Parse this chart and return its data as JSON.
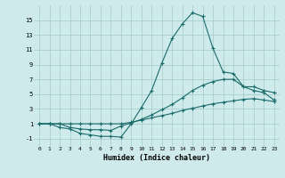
{
  "xlabel": "Humidex (Indice chaleur)",
  "background_color": "#ceeaea",
  "grid_color": "#aacece",
  "line_color": "#1a6b6b",
  "xlim": [
    -0.5,
    23.5
  ],
  "ylim": [
    -2.0,
    17.0
  ],
  "xticks": [
    0,
    1,
    2,
    3,
    4,
    5,
    6,
    7,
    8,
    9,
    10,
    11,
    12,
    13,
    14,
    15,
    16,
    17,
    18,
    19,
    20,
    21,
    22,
    23
  ],
  "yticks": [
    -1,
    1,
    3,
    5,
    7,
    9,
    11,
    13,
    15
  ],
  "line1_x": [
    0,
    1,
    2,
    3,
    4,
    5,
    6,
    7,
    8,
    9,
    10,
    11,
    12,
    13,
    14,
    15,
    16,
    17,
    18,
    19,
    20,
    21,
    22,
    23
  ],
  "line1_y": [
    1,
    1,
    0.5,
    0.3,
    -0.3,
    -0.5,
    -0.7,
    -0.7,
    -0.8,
    1.0,
    3.2,
    5.5,
    9.2,
    12.5,
    14.5,
    16.0,
    15.5,
    11.2,
    8.0,
    7.8,
    6.0,
    5.5,
    5.2,
    4.2
  ],
  "line2_x": [
    0,
    1,
    2,
    3,
    4,
    5,
    6,
    7,
    8,
    9,
    10,
    11,
    12,
    13,
    14,
    15,
    16,
    17,
    18,
    19,
    20,
    21,
    22,
    23
  ],
  "line2_y": [
    1,
    1,
    1,
    0.5,
    0.3,
    0.2,
    0.2,
    0.1,
    0.7,
    1.1,
    1.6,
    2.2,
    2.9,
    3.6,
    4.5,
    5.5,
    6.2,
    6.7,
    7.0,
    7.0,
    6.0,
    6.0,
    5.5,
    5.2
  ],
  "line3_x": [
    0,
    1,
    2,
    3,
    4,
    5,
    6,
    7,
    8,
    9,
    10,
    11,
    12,
    13,
    14,
    15,
    16,
    17,
    18,
    19,
    20,
    21,
    22,
    23
  ],
  "line3_y": [
    1,
    1,
    1,
    1,
    1,
    1,
    1,
    1,
    1,
    1.2,
    1.5,
    1.8,
    2.1,
    2.4,
    2.8,
    3.1,
    3.4,
    3.7,
    3.9,
    4.1,
    4.3,
    4.4,
    4.2,
    4.0
  ]
}
